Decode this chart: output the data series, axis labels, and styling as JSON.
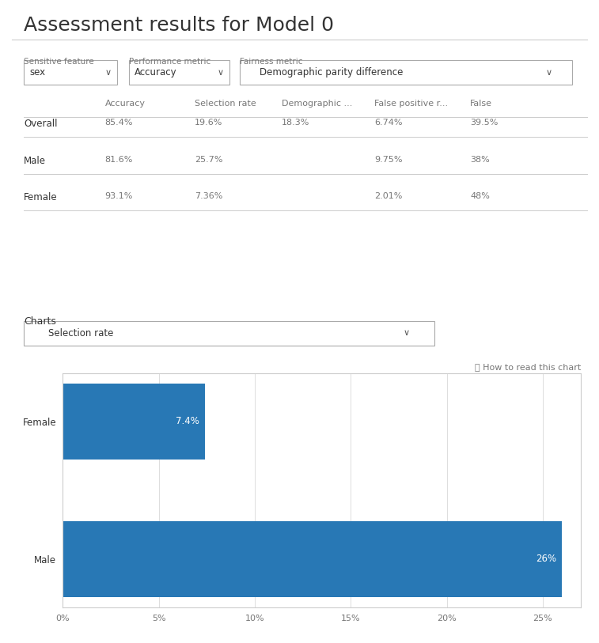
{
  "title": "Assessment results for Model 0",
  "title_fontsize": 18,
  "background_color": "#ffffff",
  "text_color": "#333333",
  "light_text_color": "#777777",
  "border_color": "#cccccc",
  "sensitive_feature_label": "Sensitive feature",
  "sensitive_feature_value": "sex",
  "performance_metric_label": "Performance metric",
  "performance_metric_value": "Accuracy",
  "fairness_metric_label": "Fairness metric",
  "fairness_metric_value": "Demographic parity difference",
  "table_headers": [
    "",
    "Accuracy",
    "Selection rate",
    "Demographic ...",
    "False positive r...",
    "False"
  ],
  "table_rows": [
    [
      "Overall",
      "85.4%",
      "19.6%",
      "18.3%",
      "6.74%",
      "39.5%"
    ],
    [
      "Male",
      "81.6%",
      "25.7%",
      "",
      "9.75%",
      "38%"
    ],
    [
      "Female",
      "93.1%",
      "7.36%",
      "",
      "2.01%",
      "48%"
    ]
  ],
  "charts_label": "Charts",
  "charts_dropdown": "Selection rate",
  "how_to_read": "ⓘ How to read this chart",
  "bar_categories": [
    "Male",
    "Female"
  ],
  "bar_values": [
    26,
    7.4
  ],
  "bar_labels": [
    "26%",
    "7.4%"
  ],
  "bar_color": "#2878b5",
  "bar_xlim": [
    0,
    27
  ],
  "bar_xticks": [
    0,
    5,
    10,
    15,
    20,
    25
  ],
  "bar_xtick_labels": [
    "0%",
    "5%",
    "10%",
    "15%",
    "20%",
    "25%"
  ],
  "grid_color": "#dddddd"
}
